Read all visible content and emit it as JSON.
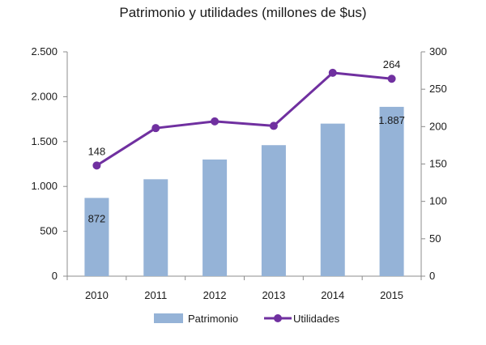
{
  "chart_data": {
    "type": "bar",
    "title": "Patrimonio y utilidades (millones de $us)",
    "categories": [
      "2010",
      "2011",
      "2012",
      "2013",
      "2014",
      "2015"
    ],
    "series": [
      {
        "name": "Patrimonio",
        "type": "bar",
        "axis": "left",
        "color": "#95B3D7",
        "values": [
          872,
          1080,
          1300,
          1460,
          1700,
          1887
        ]
      },
      {
        "name": "Utilidades",
        "type": "line",
        "axis": "right",
        "color": "#7030A0",
        "values": [
          148,
          198,
          207,
          201,
          272,
          264
        ]
      }
    ],
    "y_left": {
      "range": [
        0,
        2500
      ],
      "ticks": [
        0,
        500,
        1000,
        1500,
        2000,
        2500
      ],
      "tick_labels": [
        "0",
        "500",
        "1.000",
        "1.500",
        "2.000",
        "2.500"
      ]
    },
    "y_right": {
      "range": [
        0,
        300
      ],
      "ticks": [
        0,
        50,
        100,
        150,
        200,
        250,
        300
      ],
      "tick_labels": [
        "0",
        "50",
        "100",
        "150",
        "200",
        "250",
        "300"
      ]
    },
    "data_labels": [
      {
        "series": "Patrimonio",
        "category": "2010",
        "text": "872"
      },
      {
        "series": "Patrimonio",
        "category": "2015",
        "text": "1.887"
      },
      {
        "series": "Utilidades",
        "category": "2010",
        "text": "148"
      },
      {
        "series": "Utilidades",
        "category": "2015",
        "text": "264"
      }
    ],
    "legend": {
      "position": "bottom",
      "items": [
        "Patrimonio",
        "Utilidades"
      ]
    },
    "grid": false
  }
}
